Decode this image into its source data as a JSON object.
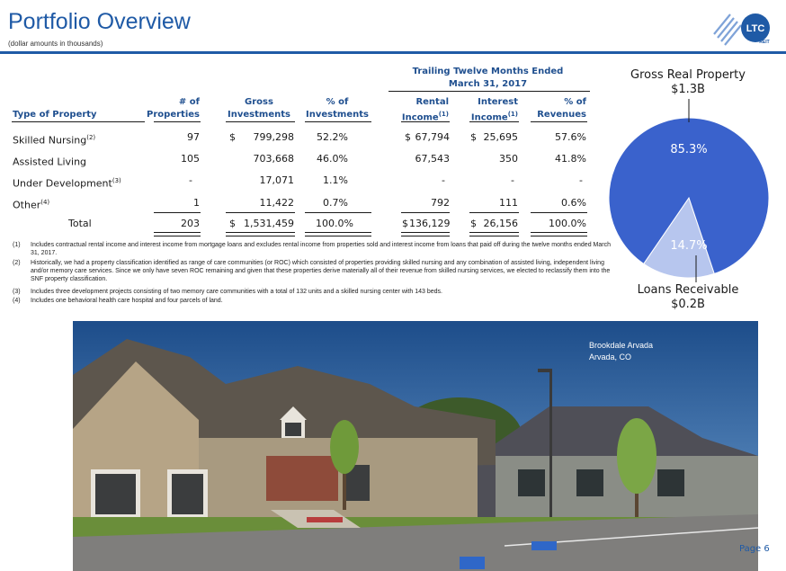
{
  "header": {
    "title": "Portfolio Overview",
    "subtitle": "(dollar amounts in thousands)"
  },
  "logo": {
    "text": "LTC",
    "subtext": "REIT"
  },
  "table": {
    "group_header_line1": "Trailing Twelve Months Ended",
    "group_header_line2": "March 31, 2017",
    "columns": {
      "type": "Type of Property",
      "props_1": "# of",
      "props_2": "Properties",
      "gross_1": "Gross",
      "gross_2": "Investments",
      "pctinv_1": "% of",
      "pctinv_2": "Investments",
      "rental_1": "Rental",
      "rental_2": "Income",
      "interest_1": "Interest",
      "interest_2": "Income",
      "pctrev_1": "% of",
      "pctrev_2": "Revenues",
      "footnote_mark": "(1)"
    },
    "rows": [
      {
        "type": "Skilled Nursing",
        "sup": "(2)",
        "props": "97",
        "cur1": "$",
        "gross": "799,298",
        "pctinv": "52.2%",
        "cur2": "$",
        "rental": "67,794",
        "cur3": "$",
        "interest": "25,695",
        "pctrev": "57.6%"
      },
      {
        "type": "Assisted Living",
        "sup": "",
        "props": "105",
        "cur1": "",
        "gross": "703,668",
        "pctinv": "46.0%",
        "cur2": "",
        "rental": "67,543",
        "cur3": "",
        "interest": "350",
        "pctrev": "41.8%"
      },
      {
        "type": "Under Development",
        "sup": "(3)",
        "props": "-",
        "cur1": "",
        "gross": "17,071",
        "pctinv": "1.1%",
        "cur2": "",
        "rental": "-",
        "cur3": "",
        "interest": "-",
        "pctrev": "-"
      },
      {
        "type": "Other",
        "sup": "(4)",
        "props": "1",
        "cur1": "",
        "gross": "11,422",
        "pctinv": "0.7%",
        "cur2": "",
        "rental": "792",
        "cur3": "",
        "interest": "111",
        "pctrev": "0.6%"
      }
    ],
    "total": {
      "type": "Total",
      "props": "203",
      "cur1": "$",
      "gross": "1,531,459",
      "pctinv": "100.0%",
      "cur2": "$",
      "rental": "136,129",
      "cur3": "$",
      "interest": "26,156",
      "pctrev": "100.0%"
    }
  },
  "footnotes": [
    {
      "n": "(1)",
      "text": "Includes contractual rental income and interest income from mortgage loans and excludes rental income from properties sold and interest income from loans that paid off during the twelve months ended March 31, 2017."
    },
    {
      "n": "(2)",
      "text": "Historically, we had a property classification identified as range of care communities (or ROC) which consisted of properties providing skilled nursing and any combination of assisted living, independent living and/or memory care services. Since we only have seven ROC remaining and given that these properties derive materially all of their revenue from skilled nursing services, we elected to reclassify them into the SNF property classification."
    },
    {
      "n": "(3)",
      "text": "Includes three development projects consisting of two memory care communities with a total of 132 units and a skilled nursing center with 143 beds."
    },
    {
      "n": "(4)",
      "text": "Includes one behavioral health care hospital and four parcels of land."
    }
  ],
  "pie": {
    "top_label_1": "Gross Real Property",
    "top_label_2": "$1.3B",
    "bottom_label_1": "Loans Receivable",
    "bottom_label_2": "$0.2B",
    "slices": [
      {
        "label": "85.3%",
        "value": 85.3,
        "color": "#3a62cc"
      },
      {
        "label": "14.7%",
        "value": 14.7,
        "color": "#b7c6ee"
      }
    ]
  },
  "photo": {
    "caption_1": "Brookdale Arvada",
    "caption_2": "Arvada, CO"
  },
  "footer": {
    "page": "Page 6"
  }
}
